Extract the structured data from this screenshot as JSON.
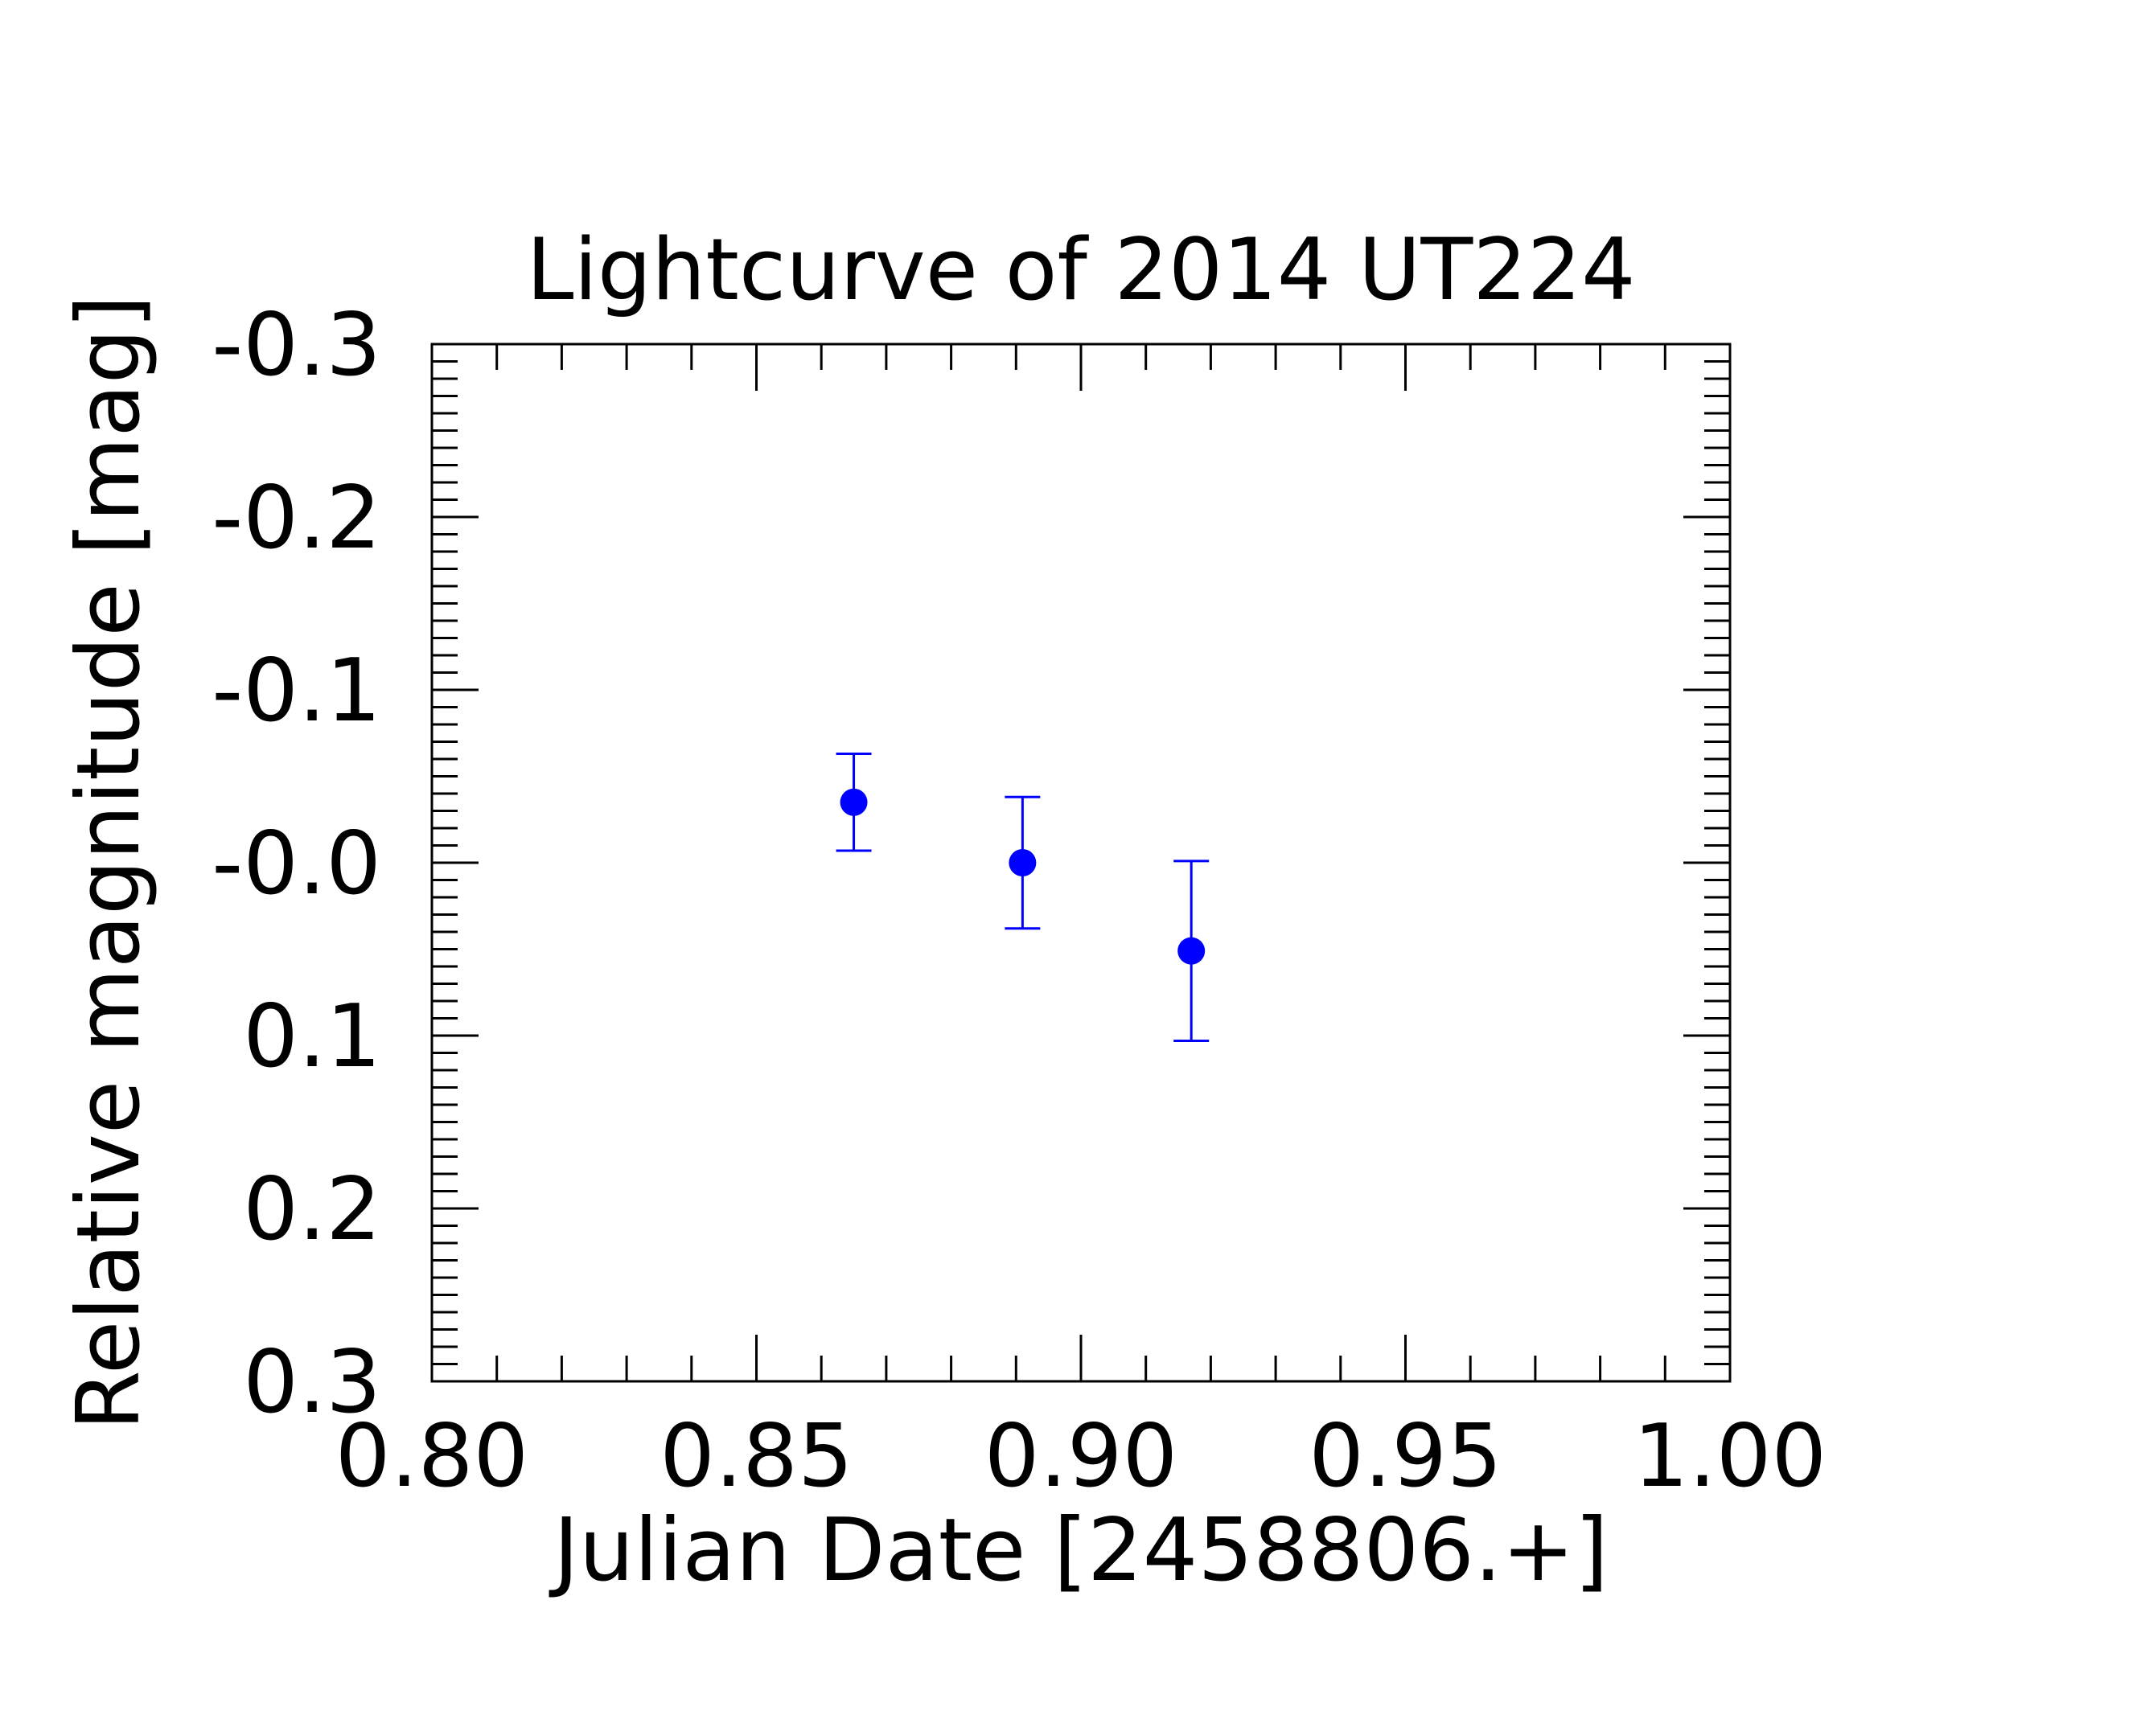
{
  "chart_data": {
    "type": "scatter",
    "title": "Lightcurve of 2014 UT224",
    "xlabel": "Julian Date [2458806.+]",
    "ylabel": "Relative magnitude [mag]",
    "xlim": [
      0.8,
      1.0
    ],
    "ylim": [
      0.3,
      -0.3
    ],
    "y_inverted": true,
    "x_ticks": [
      0.8,
      0.85,
      0.9,
      0.95,
      1.0
    ],
    "x_tick_labels": [
      "0.80",
      "0.85",
      "0.90",
      "0.95",
      "1.00"
    ],
    "y_ticks": [
      -0.3,
      -0.2,
      -0.1,
      0.0,
      0.1,
      0.2,
      0.3
    ],
    "y_tick_labels": [
      "-0.3",
      "-0.2",
      "-0.1",
      "-0.0",
      "0.1",
      "0.2",
      "0.3"
    ],
    "grid": false,
    "series": [
      {
        "color": "#0000ff",
        "points": [
          {
            "x": 0.865,
            "y": -0.035,
            "yerr": 0.028
          },
          {
            "x": 0.891,
            "y": 0.0,
            "yerr": 0.038
          },
          {
            "x": 0.917,
            "y": 0.051,
            "yerr": 0.052
          }
        ]
      }
    ]
  }
}
